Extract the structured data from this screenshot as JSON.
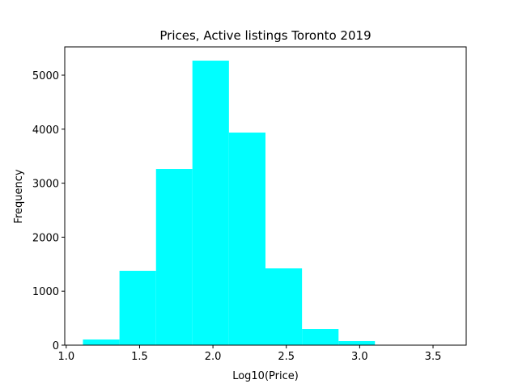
{
  "chart_data": {
    "type": "histogram",
    "title": "Prices, Active listings Toronto 2019",
    "xlabel": "Log10(Price)",
    "ylabel": "Frequency",
    "bins": [
      1.114,
      1.363,
      1.612,
      1.86,
      2.109,
      2.358,
      2.607,
      2.856,
      3.104,
      3.353,
      3.602
    ],
    "values": [
      105,
      1377,
      3263,
      5269,
      3937,
      1422,
      299,
      75,
      3,
      2
    ],
    "color": "#00ffff",
    "xlim": [
      0.99,
      3.726
    ],
    "ylim": [
      0,
      5524
    ],
    "xticks": [
      {
        "value": 1.0,
        "label": "1.0"
      },
      {
        "value": 1.5,
        "label": "1.5"
      },
      {
        "value": 2.0,
        "label": "2.0"
      },
      {
        "value": 2.5,
        "label": "2.5"
      },
      {
        "value": 3.0,
        "label": "3.0"
      },
      {
        "value": 3.5,
        "label": "3.5"
      }
    ],
    "yticks": [
      0,
      1000,
      2000,
      3000,
      4000,
      5000
    ],
    "grid": false
  }
}
